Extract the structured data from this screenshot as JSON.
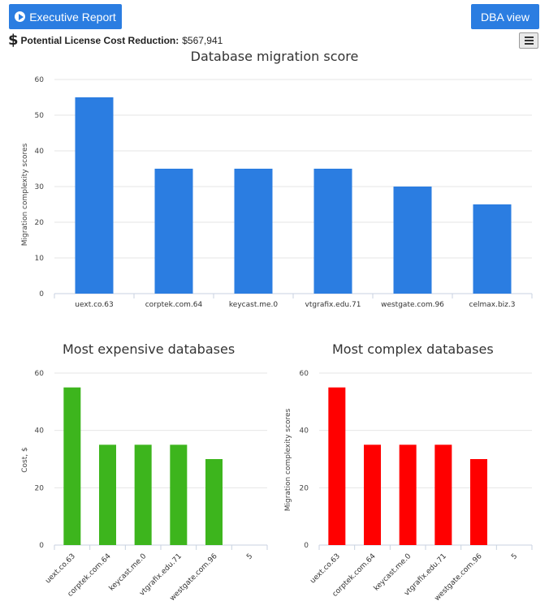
{
  "toolbar": {
    "executive_label": "Executive Report",
    "dba_label": "DBA view"
  },
  "summary": {
    "label": "Potential License Cost Reduction:",
    "value": "$567,941"
  },
  "colors": {
    "button": "#2b7de1",
    "bar_blue": "#2b7de1",
    "bar_green": "#3db51d",
    "bar_red": "#ff0000"
  },
  "chart_data": [
    {
      "type": "bar",
      "title": "Database migration score",
      "ylabel": "Migration complexity scores",
      "categories": [
        "uext.co.63",
        "corptek.com.64",
        "keycast.me.0",
        "vtgrafix.edu.71",
        "westgate.com.96",
        "celmax.biz.3"
      ],
      "values": [
        55,
        35,
        35,
        35,
        30,
        25
      ],
      "ylim": [
        0,
        60
      ],
      "yticks": [
        "0",
        "10",
        "20",
        "30",
        "40",
        "50",
        "60"
      ],
      "color": "#2b7de1"
    },
    {
      "type": "bar",
      "title": "Most expensive databases",
      "ylabel": "Cost, $",
      "categories": [
        "uext.co.63",
        "corptek.com.64",
        "keycast.me.0",
        "vtgrafix.edu.71",
        "westgate.com.96",
        "5"
      ],
      "values": [
        55,
        35,
        35,
        35,
        30,
        0
      ],
      "ylim": [
        0,
        60
      ],
      "yticks": [
        "0",
        "20",
        "40",
        "60"
      ],
      "color": "#3db51d"
    },
    {
      "type": "bar",
      "title": "Most complex databases",
      "ylabel": "Migration complexity scores",
      "categories": [
        "uext.co.63",
        "corptek.com.64",
        "keycast.me.0",
        "vtgrafix.edu.71",
        "westgate.com.96",
        "5"
      ],
      "values": [
        55,
        35,
        35,
        35,
        30,
        0
      ],
      "ylim": [
        0,
        60
      ],
      "yticks": [
        "0",
        "20",
        "40",
        "60"
      ],
      "color": "#ff0000"
    }
  ]
}
